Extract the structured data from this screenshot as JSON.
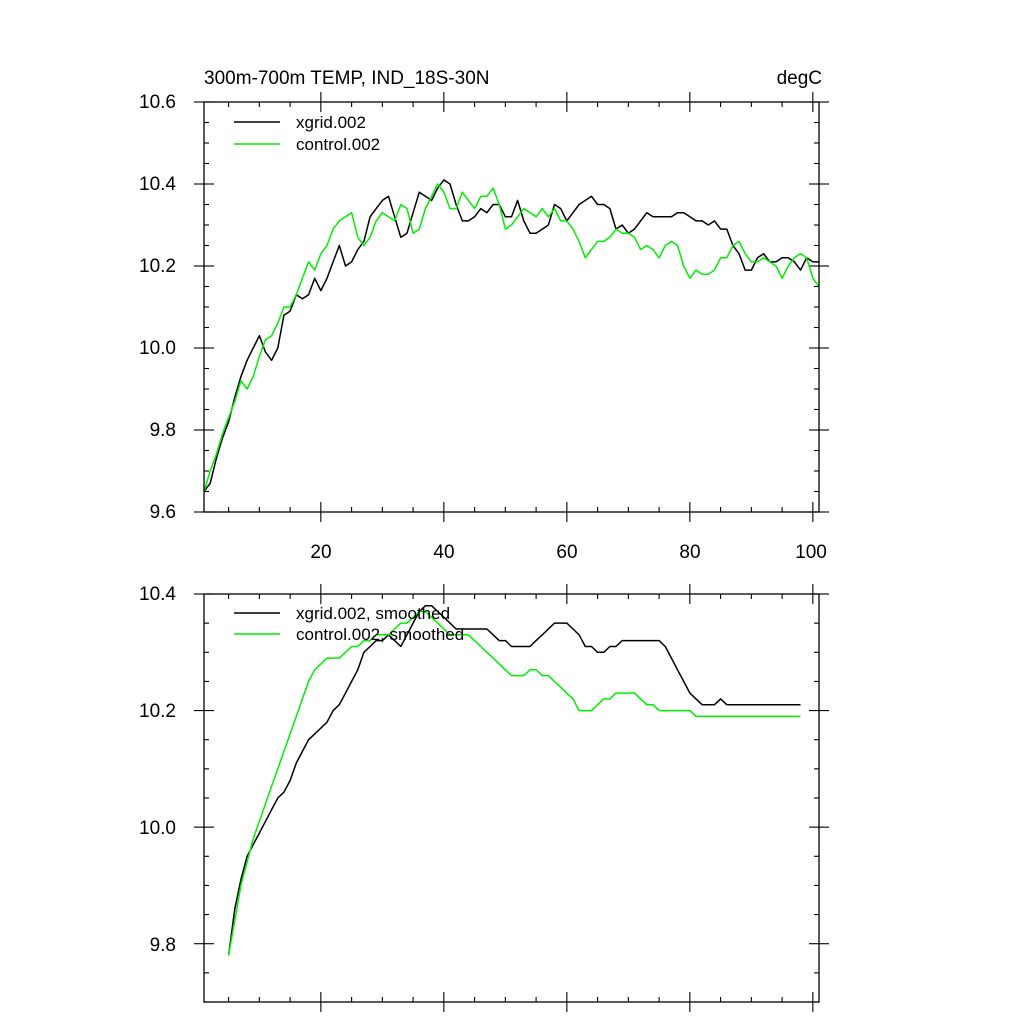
{
  "chart_data": [
    {
      "type": "line",
      "title": "300m-700m TEMP, IND_18S-30N",
      "units": "degC",
      "xlim": [
        1,
        101
      ],
      "ylim": [
        9.6,
        10.6
      ],
      "xticks": [
        20,
        40,
        60,
        80,
        100
      ],
      "xtick_labels": [
        "20",
        "40",
        "60",
        "80",
        "100"
      ],
      "yticks": [
        9.6,
        9.8,
        10.0,
        10.2,
        10.4,
        10.6
      ],
      "ytick_labels": [
        "9.6",
        "9.8",
        "10.0",
        "10.2",
        "10.4",
        "10.6"
      ],
      "legend_position": "top-left",
      "series": [
        {
          "name": "xgrid.002",
          "color": "#000000",
          "x": [
            1,
            2,
            3,
            4,
            5,
            6,
            7,
            8,
            9,
            10,
            11,
            12,
            13,
            14,
            15,
            16,
            17,
            18,
            19,
            20,
            21,
            22,
            23,
            24,
            25,
            26,
            27,
            28,
            29,
            30,
            31,
            32,
            33,
            34,
            35,
            36,
            37,
            38,
            39,
            40,
            41,
            42,
            43,
            44,
            45,
            46,
            47,
            48,
            49,
            50,
            51,
            52,
            53,
            54,
            55,
            56,
            57,
            58,
            59,
            60,
            61,
            62,
            63,
            64,
            65,
            66,
            67,
            68,
            69,
            70,
            71,
            72,
            73,
            74,
            75,
            76,
            77,
            78,
            79,
            80,
            81,
            82,
            83,
            84,
            85,
            86,
            87,
            88,
            89,
            90,
            91,
            92,
            93,
            94,
            95,
            96,
            97,
            98,
            99,
            100,
            101
          ],
          "y": [
            9.65,
            9.67,
            9.73,
            9.78,
            9.82,
            9.88,
            9.93,
            9.97,
            10.0,
            10.03,
            9.99,
            9.97,
            10.0,
            10.08,
            10.09,
            10.13,
            10.12,
            10.13,
            10.17,
            10.14,
            10.17,
            10.21,
            10.25,
            10.2,
            10.21,
            10.24,
            10.26,
            10.32,
            10.34,
            10.36,
            10.37,
            10.32,
            10.27,
            10.28,
            10.33,
            10.38,
            10.37,
            10.36,
            10.39,
            10.41,
            10.4,
            10.35,
            10.31,
            10.31,
            10.32,
            10.34,
            10.33,
            10.35,
            10.35,
            10.32,
            10.32,
            10.36,
            10.31,
            10.28,
            10.28,
            10.29,
            10.3,
            10.35,
            10.34,
            10.31,
            10.33,
            10.35,
            10.36,
            10.37,
            10.35,
            10.35,
            10.34,
            10.29,
            10.3,
            10.28,
            10.29,
            10.31,
            10.33,
            10.32,
            10.32,
            10.32,
            10.32,
            10.33,
            10.33,
            10.32,
            10.31,
            10.31,
            10.3,
            10.31,
            10.29,
            10.29,
            10.25,
            10.23,
            10.19,
            10.19,
            10.22,
            10.23,
            10.21,
            10.21,
            10.22,
            10.22,
            10.21,
            10.19,
            10.22,
            10.21,
            10.21
          ]
        },
        {
          "name": "control.002",
          "color": "#00ee00",
          "x": [
            1,
            2,
            3,
            4,
            5,
            6,
            7,
            8,
            9,
            10,
            11,
            12,
            13,
            14,
            15,
            16,
            17,
            18,
            19,
            20,
            21,
            22,
            23,
            24,
            25,
            26,
            27,
            28,
            29,
            30,
            31,
            32,
            33,
            34,
            35,
            36,
            37,
            38,
            39,
            40,
            41,
            42,
            43,
            44,
            45,
            46,
            47,
            48,
            49,
            50,
            51,
            52,
            53,
            54,
            55,
            56,
            57,
            58,
            59,
            60,
            61,
            62,
            63,
            64,
            65,
            66,
            67,
            68,
            69,
            70,
            71,
            72,
            73,
            74,
            75,
            76,
            77,
            78,
            79,
            80,
            81,
            82,
            83,
            84,
            85,
            86,
            87,
            88,
            89,
            90,
            91,
            92,
            93,
            94,
            95,
            96,
            97,
            98,
            99,
            100,
            101
          ],
          "y": [
            9.65,
            9.7,
            9.74,
            9.79,
            9.83,
            9.87,
            9.92,
            9.9,
            9.93,
            9.98,
            10.02,
            10.03,
            10.06,
            10.1,
            10.1,
            10.13,
            10.17,
            10.21,
            10.19,
            10.23,
            10.25,
            10.29,
            10.31,
            10.32,
            10.33,
            10.27,
            10.25,
            10.27,
            10.31,
            10.33,
            10.32,
            10.31,
            10.35,
            10.34,
            10.28,
            10.29,
            10.34,
            10.37,
            10.4,
            10.38,
            10.34,
            10.34,
            10.38,
            10.36,
            10.34,
            10.37,
            10.37,
            10.39,
            10.35,
            10.29,
            10.3,
            10.32,
            10.34,
            10.33,
            10.32,
            10.34,
            10.32,
            10.34,
            10.31,
            10.31,
            10.29,
            10.26,
            10.22,
            10.24,
            10.26,
            10.26,
            10.27,
            10.29,
            10.28,
            10.28,
            10.27,
            10.24,
            10.25,
            10.24,
            10.22,
            10.25,
            10.26,
            10.25,
            10.2,
            10.17,
            10.19,
            10.18,
            10.18,
            10.19,
            10.22,
            10.22,
            10.25,
            10.26,
            10.23,
            10.21,
            10.21,
            10.22,
            10.21,
            10.2,
            10.17,
            10.2,
            10.22,
            10.23,
            10.22,
            10.17,
            10.15
          ]
        }
      ]
    },
    {
      "type": "line",
      "title": "",
      "xlim": [
        1,
        101
      ],
      "ylim": [
        9.7,
        10.4
      ],
      "xticks": [
        20,
        40,
        60,
        80,
        100
      ],
      "yticks": [
        9.8,
        10.0,
        10.2,
        10.4
      ],
      "ytick_labels": [
        "9.8",
        "10.0",
        "10.2",
        "10.4"
      ],
      "legend_position": "top-left",
      "series": [
        {
          "name": "xgrid.002, smoothed",
          "color": "#000000",
          "x": [
            5,
            6,
            7,
            8,
            9,
            10,
            11,
            12,
            13,
            14,
            15,
            16,
            17,
            18,
            19,
            20,
            21,
            22,
            23,
            24,
            25,
            26,
            27,
            28,
            29,
            30,
            31,
            32,
            33,
            34,
            35,
            36,
            37,
            38,
            39,
            40,
            41,
            42,
            43,
            44,
            45,
            46,
            47,
            48,
            49,
            50,
            51,
            52,
            53,
            54,
            55,
            56,
            57,
            58,
            59,
            60,
            61,
            62,
            63,
            64,
            65,
            66,
            67,
            68,
            69,
            70,
            71,
            72,
            73,
            74,
            75,
            76,
            77,
            78,
            79,
            80,
            81,
            82,
            83,
            84,
            85,
            86,
            87,
            88,
            89,
            90,
            91,
            92,
            93,
            94,
            95,
            96,
            97,
            98
          ],
          "y": [
            9.78,
            9.86,
            9.91,
            9.95,
            9.97,
            9.99,
            10.01,
            10.03,
            10.05,
            10.06,
            10.08,
            10.11,
            10.13,
            10.15,
            10.16,
            10.17,
            10.18,
            10.2,
            10.21,
            10.23,
            10.25,
            10.27,
            10.3,
            10.31,
            10.32,
            10.32,
            10.33,
            10.32,
            10.31,
            10.33,
            10.35,
            10.37,
            10.38,
            10.38,
            10.37,
            10.36,
            10.35,
            10.34,
            10.34,
            10.34,
            10.34,
            10.34,
            10.34,
            10.33,
            10.32,
            10.32,
            10.31,
            10.31,
            10.31,
            10.31,
            10.32,
            10.33,
            10.34,
            10.35,
            10.35,
            10.35,
            10.34,
            10.33,
            10.31,
            10.31,
            10.3,
            10.3,
            10.31,
            10.31,
            10.32,
            10.32,
            10.32,
            10.32,
            10.32,
            10.32,
            10.32,
            10.31,
            10.29,
            10.27,
            10.25,
            10.23,
            10.22,
            10.21,
            10.21,
            10.21,
            10.22,
            10.21,
            10.21,
            10.21,
            10.21,
            10.21,
            10.21,
            10.21,
            10.21,
            10.21,
            10.21,
            10.21,
            10.21,
            10.21
          ]
        },
        {
          "name": "control.002, smoothed",
          "color": "#00ee00",
          "x": [
            5,
            6,
            7,
            8,
            9,
            10,
            11,
            12,
            13,
            14,
            15,
            16,
            17,
            18,
            19,
            20,
            21,
            22,
            23,
            24,
            25,
            26,
            27,
            28,
            29,
            30,
            31,
            32,
            33,
            34,
            35,
            36,
            37,
            38,
            39,
            40,
            41,
            42,
            43,
            44,
            45,
            46,
            47,
            48,
            49,
            50,
            51,
            52,
            53,
            54,
            55,
            56,
            57,
            58,
            59,
            60,
            61,
            62,
            63,
            64,
            65,
            66,
            67,
            68,
            69,
            70,
            71,
            72,
            73,
            74,
            75,
            76,
            77,
            78,
            79,
            80,
            81,
            82,
            83,
            84,
            85,
            86,
            87,
            88,
            89,
            90,
            91,
            92,
            93,
            94,
            95,
            96,
            97,
            98
          ],
          "y": [
            9.78,
            9.84,
            9.9,
            9.94,
            9.98,
            10.01,
            10.04,
            10.07,
            10.1,
            10.13,
            10.16,
            10.19,
            10.22,
            10.25,
            10.27,
            10.28,
            10.29,
            10.29,
            10.29,
            10.3,
            10.31,
            10.31,
            10.32,
            10.32,
            10.33,
            10.33,
            10.33,
            10.34,
            10.35,
            10.35,
            10.36,
            10.37,
            10.37,
            10.36,
            10.35,
            10.34,
            10.33,
            10.33,
            10.33,
            10.33,
            10.32,
            10.31,
            10.3,
            10.29,
            10.28,
            10.27,
            10.26,
            10.26,
            10.26,
            10.27,
            10.27,
            10.26,
            10.26,
            10.25,
            10.24,
            10.23,
            10.22,
            10.2,
            10.2,
            10.2,
            10.21,
            10.22,
            10.22,
            10.23,
            10.23,
            10.23,
            10.23,
            10.22,
            10.21,
            10.21,
            10.2,
            10.2,
            10.2,
            10.2,
            10.2,
            10.2,
            10.19,
            10.19,
            10.19,
            10.19,
            10.19,
            10.19,
            10.19,
            10.19,
            10.19,
            10.19,
            10.19,
            10.19,
            10.19,
            10.19,
            10.19,
            10.19,
            10.19,
            10.19
          ]
        }
      ]
    }
  ]
}
